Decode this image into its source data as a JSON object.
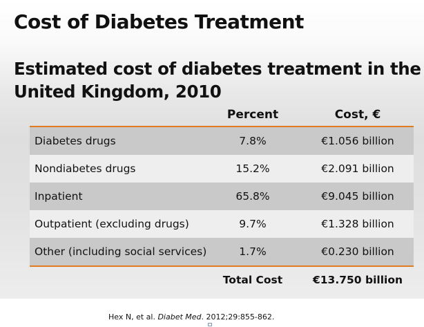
{
  "slide": {
    "title": "Cost of Diabetes Treatment",
    "subtitle": "Estimated cost of diabetes treatment in the United Kingdom, 2010"
  },
  "table": {
    "columns": [
      "",
      "Percent",
      "Cost, €"
    ],
    "rows": [
      {
        "category": "Diabetes drugs",
        "percent": "7.8%",
        "cost": "€1.056 billion"
      },
      {
        "category": "Nondiabetes drugs",
        "percent": "15.2%",
        "cost": "€2.091 billion"
      },
      {
        "category": "Inpatient",
        "percent": "65.8%",
        "cost": "€9.045 billion"
      },
      {
        "category": "Outpatient (excluding drugs)",
        "percent": "9.7%",
        "cost": "€1.328 billion"
      },
      {
        "category": "Other (including social services)",
        "percent": "1.7%",
        "cost": "€0.230 billion"
      }
    ],
    "total_label": "Total Cost",
    "total_value": "€13.750 billion"
  },
  "citation": {
    "authors": "Hex N, et al.",
    "journal": "Diabet Med",
    "details": ". 2012;29:855-862."
  },
  "colors": {
    "accent_rule": "#e07b1f",
    "row_shade": "#c9c9c9",
    "row_plain": "#eeeeee"
  }
}
